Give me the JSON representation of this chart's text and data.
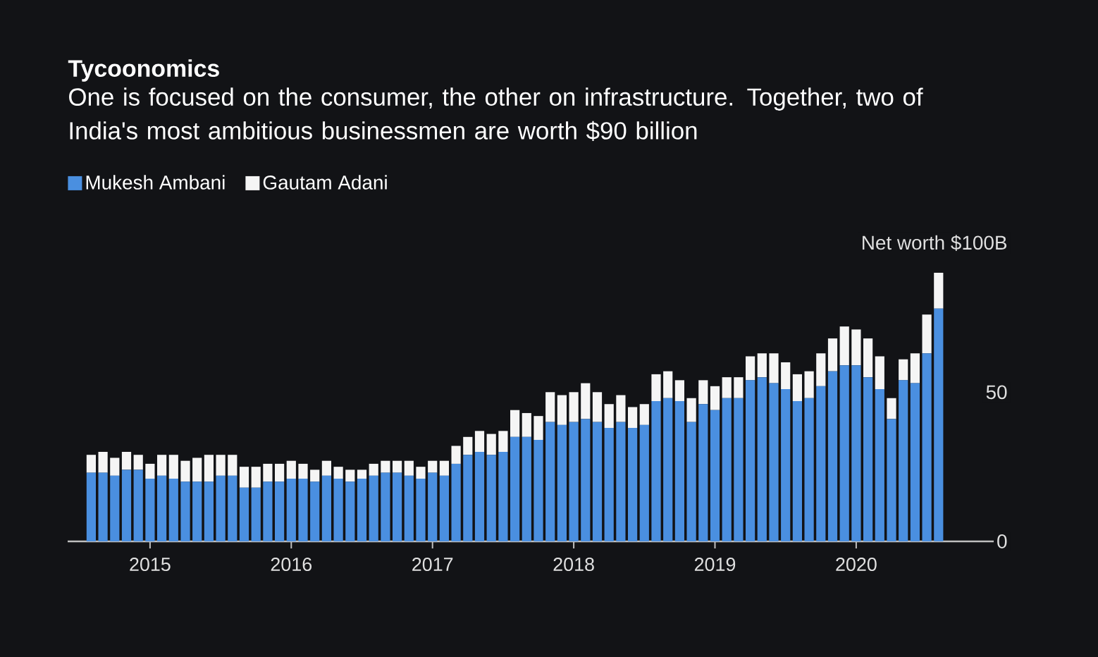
{
  "chart_data": {
    "type": "bar",
    "stacked": true,
    "title": "Tycoonomics",
    "subtitle": "One is focused on the consumer, the other on infrastructure. Together, two of India's most ambitious businessmen are worth $90 billion",
    "x": [
      "2014-08",
      "2014-09",
      "2014-10",
      "2014-11",
      "2014-12",
      "2015-01",
      "2015-02",
      "2015-03",
      "2015-04",
      "2015-05",
      "2015-06",
      "2015-07",
      "2015-08",
      "2015-09",
      "2015-10",
      "2015-11",
      "2015-12",
      "2016-01",
      "2016-02",
      "2016-03",
      "2016-04",
      "2016-05",
      "2016-06",
      "2016-07",
      "2016-08",
      "2016-09",
      "2016-10",
      "2016-11",
      "2016-12",
      "2017-01",
      "2017-02",
      "2017-03",
      "2017-04",
      "2017-05",
      "2017-06",
      "2017-07",
      "2017-08",
      "2017-09",
      "2017-10",
      "2017-11",
      "2017-12",
      "2018-01",
      "2018-02",
      "2018-03",
      "2018-04",
      "2018-05",
      "2018-06",
      "2018-07",
      "2018-08",
      "2018-09",
      "2018-10",
      "2018-11",
      "2018-12",
      "2019-01",
      "2019-02",
      "2019-03",
      "2019-04",
      "2019-05",
      "2019-06",
      "2019-07",
      "2019-08",
      "2019-09",
      "2019-10",
      "2019-11",
      "2019-12",
      "2020-01",
      "2020-02",
      "2020-03",
      "2020-04",
      "2020-05",
      "2020-06",
      "2020-07",
      "2020-08"
    ],
    "series": [
      {
        "name": "Mukesh Ambani",
        "color": "#4a8fe0",
        "values": [
          23,
          23,
          22,
          24,
          24,
          21,
          22,
          21,
          20,
          20,
          20,
          22,
          22,
          18,
          18,
          20,
          20,
          21,
          21,
          20,
          22,
          21,
          20,
          21,
          22,
          23,
          23,
          22,
          21,
          23,
          22,
          26,
          29,
          30,
          29,
          30,
          35,
          35,
          34,
          40,
          39,
          40,
          41,
          40,
          38,
          40,
          38,
          39,
          47,
          48,
          47,
          40,
          46,
          44,
          48,
          48,
          54,
          55,
          53,
          51,
          47,
          48,
          52,
          57,
          59,
          59,
          55,
          51,
          41,
          54,
          53,
          63,
          78
        ]
      },
      {
        "name": "Gautam Adani",
        "color": "#f5f5f5",
        "values": [
          6,
          7,
          6,
          6,
          5,
          5,
          7,
          8,
          7,
          8,
          9,
          7,
          7,
          7,
          7,
          6,
          6,
          6,
          5,
          4,
          5,
          4,
          4,
          3,
          4,
          4,
          4,
          5,
          4,
          4,
          5,
          6,
          6,
          7,
          7,
          7,
          9,
          8,
          8,
          10,
          10,
          10,
          12,
          10,
          8,
          9,
          7,
          7,
          9,
          9,
          7,
          8,
          8,
          8,
          7,
          7,
          8,
          8,
          10,
          9,
          9,
          9,
          11,
          11,
          13,
          12,
          13,
          11,
          7,
          7,
          10,
          13,
          12
        ]
      }
    ],
    "xlim": [
      "2014-06",
      "2021-02"
    ],
    "xticks": [
      {
        "value": "2015-01",
        "label": "2015"
      },
      {
        "value": "2016-01",
        "label": "2016"
      },
      {
        "value": "2017-01",
        "label": "2017"
      },
      {
        "value": "2018-01",
        "label": "2018"
      },
      {
        "value": "2019-01",
        "label": "2019"
      },
      {
        "value": "2020-01",
        "label": "2020"
      }
    ],
    "ylim": [
      0,
      100
    ],
    "yticks": [
      0,
      50,
      {
        "value": 100,
        "label": "Net worth $100B"
      }
    ],
    "legend": "top left"
  }
}
